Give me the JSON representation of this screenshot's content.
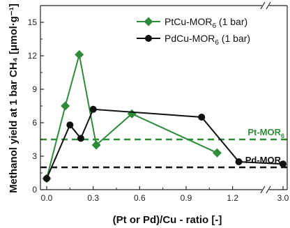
{
  "chart_data": {
    "type": "line",
    "xlabel": "(Pt or Pd)/Cu - ratio [-]",
    "ylabel": "Methanol yield at 1 bar CH₄ [μmol·g⁻¹]",
    "xlim": [
      0.0,
      3.0
    ],
    "ylim": [
      0,
      16.5
    ],
    "x_axis_break": {
      "from": 1.35,
      "to": 2.88
    },
    "x_ticks": [
      0.0,
      0.3,
      0.6,
      0.9,
      1.2,
      3.0
    ],
    "x_tick_labels": [
      "0.0",
      "0.3",
      "0.6",
      "0.9",
      "1.2",
      "3.0"
    ],
    "y_ticks": [
      0,
      3,
      6,
      9,
      12,
      15
    ],
    "y_tick_labels": [
      "0",
      "3",
      "6",
      "9",
      "12",
      "15"
    ],
    "legend_position": "top-right",
    "series": [
      {
        "name": "PtCu-MOR",
        "name_subscript": "6",
        "name_suffix": " (1 bar)",
        "color": "#2e8b3a",
        "marker": "diamond",
        "points": [
          {
            "x": 0.0,
            "y": 1.0
          },
          {
            "x": 0.12,
            "y": 7.5
          },
          {
            "x": 0.21,
            "y": 12.1
          },
          {
            "x": 0.32,
            "y": 4.0
          },
          {
            "x": 0.55,
            "y": 6.8
          },
          {
            "x": 1.1,
            "y": 3.3
          }
        ]
      },
      {
        "name": "PdCu-MOR",
        "name_subscript": "6",
        "name_suffix": " (1 bar)",
        "color": "#111111",
        "marker": "circle",
        "points": [
          {
            "x": 0.0,
            "y": 1.0
          },
          {
            "x": 0.15,
            "y": 5.8
          },
          {
            "x": 0.22,
            "y": 4.6
          },
          {
            "x": 0.3,
            "y": 7.2
          },
          {
            "x": 1.0,
            "y": 6.5
          },
          {
            "x": 1.24,
            "y": 2.5
          },
          {
            "x": 3.0,
            "y": 2.3
          }
        ]
      }
    ],
    "reference_lines": [
      {
        "label": "Pt-MOR",
        "label_subscript": "6",
        "y": 4.5,
        "color": "#2e8b3a"
      },
      {
        "label": "Pd-MOR",
        "label_subscript": "6",
        "y": 2.0,
        "color": "#111111"
      }
    ]
  }
}
